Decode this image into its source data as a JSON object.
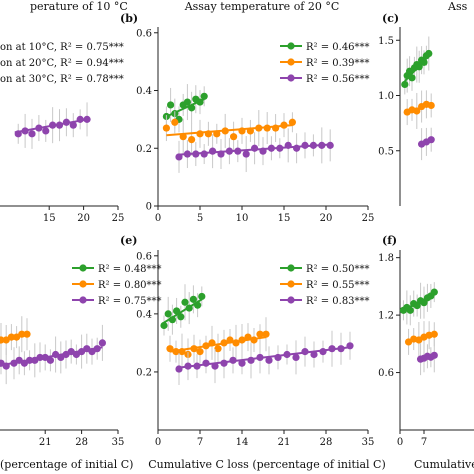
{
  "colors": {
    "green": "#2ca02c",
    "orange": "#ff8c00",
    "purple": "#8e44ad",
    "err": "#c8c8c8",
    "axis": "#222222"
  },
  "chart_data": [
    {
      "type": "scatter",
      "label": "",
      "title": "perature of 10 °C",
      "xlabel": "",
      "ylabel": "",
      "xticks": [
        "15",
        "20",
        "25"
      ],
      "yticks": [],
      "xlim": [
        0,
        25
      ],
      "ylim": [
        0,
        0.62
      ],
      "legend": [
        "on at 10°C, R² = 0.75***",
        "on at 20°C, R² = 0.94***",
        "on at 30°C, R² = 0.78***"
      ],
      "series": [
        {
          "color": "purple",
          "x": [
            10.5,
            11.5,
            12.5,
            13.5,
            14.5,
            15.5,
            16.5,
            17.5,
            18.5,
            19.5,
            20.5
          ],
          "y": [
            0.25,
            0.26,
            0.25,
            0.27,
            0.26,
            0.28,
            0.28,
            0.29,
            0.28,
            0.3,
            0.3
          ],
          "fit": [
            [
              10,
              0.255
            ],
            [
              21,
              0.302
            ]
          ]
        }
      ]
    },
    {
      "type": "scatter",
      "label": "(b)",
      "title": "Assay temperature of 20 °C",
      "xlabel": "",
      "ylabel": "",
      "xticks": [
        "0",
        "5",
        "10",
        "15",
        "20",
        "25"
      ],
      "yticks": [
        "0",
        "0.2",
        "0.4",
        "0.6"
      ],
      "xlim": [
        0,
        25
      ],
      "ylim": [
        0,
        0.62
      ],
      "legend": [
        "R² = 0.46***",
        "R² = 0.39***",
        "R² = 0.56***"
      ],
      "series": [
        {
          "color": "green",
          "x": [
            1.0,
            1.5,
            2.0,
            2.5,
            3.0,
            3.5,
            4.0,
            4.5,
            5.0,
            5.5
          ],
          "y": [
            0.31,
            0.35,
            0.32,
            0.3,
            0.35,
            0.36,
            0.34,
            0.37,
            0.36,
            0.38
          ],
          "fit": [
            [
              1,
              0.31
            ],
            [
              5.5,
              0.37
            ]
          ]
        },
        {
          "color": "orange",
          "x": [
            1.0,
            2.0,
            3.0,
            4.0,
            5.0,
            6.0,
            7.0,
            8.0,
            9.0,
            10.0,
            11.0,
            12.0,
            13.0,
            14.0,
            15.0,
            16.0
          ],
          "y": [
            0.27,
            0.29,
            0.24,
            0.23,
            0.25,
            0.25,
            0.25,
            0.26,
            0.24,
            0.26,
            0.26,
            0.27,
            0.27,
            0.27,
            0.28,
            0.29
          ],
          "fit": [
            [
              1,
              0.245
            ],
            [
              16,
              0.28
            ]
          ]
        },
        {
          "color": "purple",
          "x": [
            2.5,
            3.5,
            4.5,
            5.5,
            6.5,
            7.5,
            8.5,
            9.5,
            10.5,
            11.5,
            12.5,
            13.5,
            14.5,
            15.5,
            16.5,
            17.5,
            18.5,
            19.5,
            20.5
          ],
          "y": [
            0.17,
            0.18,
            0.18,
            0.18,
            0.19,
            0.18,
            0.19,
            0.19,
            0.18,
            0.2,
            0.19,
            0.2,
            0.2,
            0.21,
            0.2,
            0.21,
            0.21,
            0.21,
            0.21
          ],
          "fit": [
            [
              2.5,
              0.178
            ],
            [
              20.5,
              0.213
            ]
          ]
        }
      ]
    },
    {
      "type": "scatter",
      "label": "(c)",
      "title": "Ass",
      "xlabel": "",
      "ylabel": "",
      "xticks": [],
      "yticks": [
        "0.5",
        "1.0",
        "1.5"
      ],
      "xlim": [
        0,
        25
      ],
      "ylim": [
        0,
        1.62
      ],
      "legend": [],
      "series": [
        {
          "color": "green",
          "x": [
            1.0,
            1.5,
            2.0,
            2.5,
            3.0,
            3.5,
            4.0,
            4.5,
            5.0,
            5.5,
            6.0
          ],
          "y": [
            1.1,
            1.18,
            1.22,
            1.16,
            1.25,
            1.28,
            1.26,
            1.32,
            1.3,
            1.36,
            1.38
          ],
          "fit": [
            [
              1,
              1.13
            ],
            [
              6,
              1.36
            ]
          ]
        },
        {
          "color": "orange",
          "x": [
            1.5,
            2.5,
            3.5,
            4.5,
            5.5,
            6.5
          ],
          "y": [
            0.85,
            0.87,
            0.86,
            0.9,
            0.92,
            0.91
          ],
          "fit": [
            [
              1.5,
              0.85
            ],
            [
              6.5,
              0.92
            ]
          ]
        },
        {
          "color": "purple",
          "x": [
            4.5,
            5.5,
            6.5
          ],
          "y": [
            0.56,
            0.58,
            0.6
          ],
          "fit": [
            [
              4.5,
              0.57
            ],
            [
              6.5,
              0.6
            ]
          ]
        }
      ]
    },
    {
      "type": "scatter",
      "label": "",
      "title": "",
      "xlabel": "(percentage of initial C)",
      "ylabel": "",
      "xticks": [
        "21",
        "28",
        "35"
      ],
      "yticks": [],
      "xlim": [
        0,
        35
      ],
      "ylim": [
        0,
        0.62
      ],
      "legend": [
        "R² = 0.48***",
        "R² = 0.80***",
        "R² = 0.75***"
      ],
      "series": [
        {
          "color": "orange",
          "x": [
            11.5,
            12.5,
            13.5,
            14.5,
            15.5,
            16.5,
            17.5
          ],
          "y": [
            0.3,
            0.31,
            0.31,
            0.32,
            0.32,
            0.33,
            0.33
          ],
          "fit": [
            [
              11.5,
              0.302
            ],
            [
              17.5,
              0.333
            ]
          ]
        },
        {
          "color": "purple",
          "x": [
            11.5,
            12.5,
            13.5,
            15.0,
            16.0,
            17.0,
            18.0,
            19.0,
            20.0,
            21.0,
            22.0,
            23.0,
            24.0,
            25.0,
            26.0,
            27.0,
            28.0,
            29.0,
            30.0,
            31.0,
            32.0
          ],
          "y": [
            0.22,
            0.23,
            0.22,
            0.23,
            0.24,
            0.23,
            0.24,
            0.24,
            0.25,
            0.25,
            0.24,
            0.26,
            0.25,
            0.26,
            0.27,
            0.26,
            0.27,
            0.28,
            0.27,
            0.28,
            0.3
          ],
          "fit": [
            [
              11.5,
              0.22
            ],
            [
              32,
              0.285
            ]
          ]
        }
      ]
    },
    {
      "type": "scatter",
      "label": "(e)",
      "title": "",
      "xlabel": "Cumulative C loss (percentage of initial C)",
      "ylabel": "",
      "xticks": [
        "0",
        "7",
        "14",
        "21",
        "28",
        "35"
      ],
      "yticks": [
        "0.2",
        "0.4",
        "0.6"
      ],
      "xlim": [
        0,
        35
      ],
      "ylim": [
        0,
        0.62
      ],
      "legend": [
        "R² = 0.50***",
        "R² = 0.55***",
        "R² = 0.83***"
      ],
      "series": [
        {
          "color": "green",
          "x": [
            1.0,
            1.7,
            2.4,
            3.1,
            3.8,
            4.5,
            5.2,
            5.9,
            6.6,
            7.3
          ],
          "y": [
            0.36,
            0.4,
            0.38,
            0.41,
            0.39,
            0.44,
            0.42,
            0.45,
            0.43,
            0.46
          ],
          "fit": [
            [
              1,
              0.37
            ],
            [
              7.3,
              0.45
            ]
          ]
        },
        {
          "color": "orange",
          "x": [
            2.0,
            3.0,
            4.0,
            5.0,
            6.0,
            7.0,
            8.0,
            9.0,
            10.0,
            11.0,
            12.0,
            13.0,
            14.0,
            15.0,
            16.0,
            17.0,
            18.0
          ],
          "y": [
            0.28,
            0.27,
            0.27,
            0.26,
            0.28,
            0.27,
            0.29,
            0.3,
            0.28,
            0.3,
            0.31,
            0.3,
            0.31,
            0.32,
            0.31,
            0.33,
            0.33
          ],
          "fit": [
            [
              2,
              0.27
            ],
            [
              18,
              0.32
            ]
          ]
        },
        {
          "color": "purple",
          "x": [
            3.5,
            5.0,
            6.5,
            8.0,
            9.5,
            11.0,
            12.5,
            14.0,
            15.5,
            17.0,
            18.5,
            20.0,
            21.5,
            23.0,
            24.5,
            26.0,
            27.5,
            29.0,
            30.5,
            32.0
          ],
          "y": [
            0.21,
            0.22,
            0.22,
            0.23,
            0.22,
            0.23,
            0.24,
            0.23,
            0.24,
            0.25,
            0.24,
            0.25,
            0.26,
            0.25,
            0.27,
            0.26,
            0.27,
            0.28,
            0.28,
            0.29
          ],
          "fit": [
            [
              3.5,
              0.215
            ],
            [
              32,
              0.285
            ]
          ]
        }
      ]
    },
    {
      "type": "scatter",
      "label": "(f)",
      "title": "",
      "xlabel": "Cumulative C",
      "ylabel": "",
      "xticks": [
        "0",
        "7"
      ],
      "yticks": [
        "0.6",
        "1.2",
        "1.8"
      ],
      "xlim": [
        0,
        35
      ],
      "ylim": [
        0,
        1.88
      ],
      "legend": [],
      "series": [
        {
          "color": "green",
          "x": [
            1.0,
            2.0,
            3.0,
            4.0,
            5.0,
            6.0,
            7.0,
            8.0,
            9.0,
            10.0
          ],
          "y": [
            1.25,
            1.28,
            1.25,
            1.32,
            1.3,
            1.35,
            1.33,
            1.38,
            1.4,
            1.44
          ],
          "fit": [
            [
              1,
              1.25
            ],
            [
              10,
              1.42
            ]
          ]
        },
        {
          "color": "orange",
          "x": [
            2.5,
            4.0,
            5.5,
            7.0,
            8.5,
            10.0
          ],
          "y": [
            0.92,
            0.95,
            0.94,
            0.97,
            0.99,
            1.0
          ],
          "fit": [
            [
              2.5,
              0.92
            ],
            [
              10,
              1.0
            ]
          ]
        },
        {
          "color": "purple",
          "x": [
            6.0,
            7.0,
            8.0,
            9.0,
            10.0
          ],
          "y": [
            0.74,
            0.75,
            0.77,
            0.76,
            0.78
          ],
          "fit": [
            [
              6,
              0.74
            ],
            [
              10,
              0.78
            ]
          ]
        }
      ]
    }
  ]
}
